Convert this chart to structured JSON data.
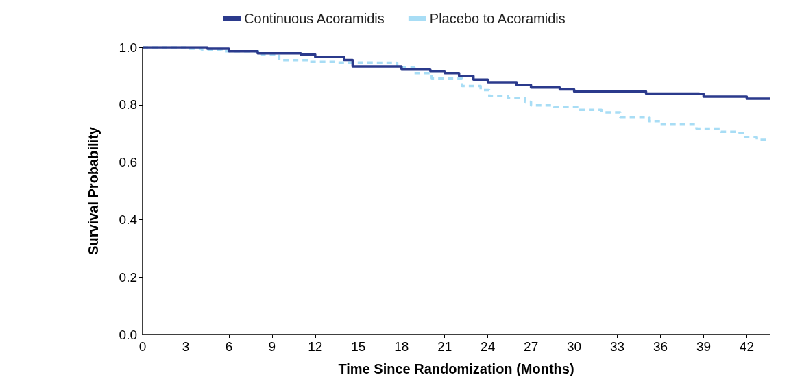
{
  "chart_data": {
    "type": "step",
    "xlabel": "Time Since Randomization (Months)",
    "ylabel": "Survival Probability",
    "xlim": [
      0,
      43.6
    ],
    "xticks": [
      0,
      3,
      6,
      9,
      12,
      15,
      18,
      21,
      24,
      27,
      30,
      33,
      36,
      39,
      42
    ],
    "ylim": [
      0,
      1
    ],
    "yticks": [
      {
        "value": 0,
        "label": "0.0"
      },
      {
        "value": 0.2,
        "label": "0.2"
      },
      {
        "value": 0.4,
        "label": "0.4"
      },
      {
        "value": 0.6,
        "label": "0.6"
      },
      {
        "value": 0.8,
        "label": "0.8"
      },
      {
        "value": 1,
        "label": "1.0"
      }
    ],
    "grid": false,
    "legend": "top",
    "series": [
      {
        "name": "Continuous Acoramidis",
        "color": "#2b3a8c",
        "line_style": "solid",
        "x": [
          0,
          4,
          4.5,
          6,
          8,
          11,
          12,
          14,
          14.6,
          18,
          20,
          21,
          22,
          23,
          24,
          26,
          27,
          29,
          30,
          33,
          35,
          38.7,
          39,
          42,
          43.6
        ],
        "values": [
          1,
          1,
          0.995,
          0.986,
          0.979,
          0.975,
          0.966,
          0.956,
          0.933,
          0.924,
          0.917,
          0.91,
          0.9,
          0.887,
          0.878,
          0.869,
          0.86,
          0.853,
          0.846,
          0.846,
          0.839,
          0.837,
          0.828,
          0.821,
          0.821
        ]
      },
      {
        "name": "Placebo to Acoramidis",
        "color": "#a8ddf5",
        "line_style": "dashed",
        "x": [
          0,
          3,
          4.1,
          5.5,
          8.3,
          9.5,
          11.6,
          13.6,
          15.2,
          17.7,
          18.9,
          20.1,
          22.2,
          23.5,
          24.1,
          25.4,
          26.6,
          27,
          28.6,
          30.3,
          31.9,
          33.2,
          35.2,
          36,
          37.7,
          38.5,
          40.2,
          41.5,
          41.8,
          42.7,
          43.6
        ],
        "values": [
          1,
          0.995,
          0.992,
          0.986,
          0.975,
          0.955,
          0.949,
          0.947,
          0.946,
          0.929,
          0.91,
          0.892,
          0.865,
          0.851,
          0.83,
          0.823,
          0.81,
          0.798,
          0.793,
          0.782,
          0.773,
          0.757,
          0.743,
          0.731,
          0.731,
          0.717,
          0.706,
          0.701,
          0.687,
          0.678,
          0.678
        ]
      }
    ]
  }
}
